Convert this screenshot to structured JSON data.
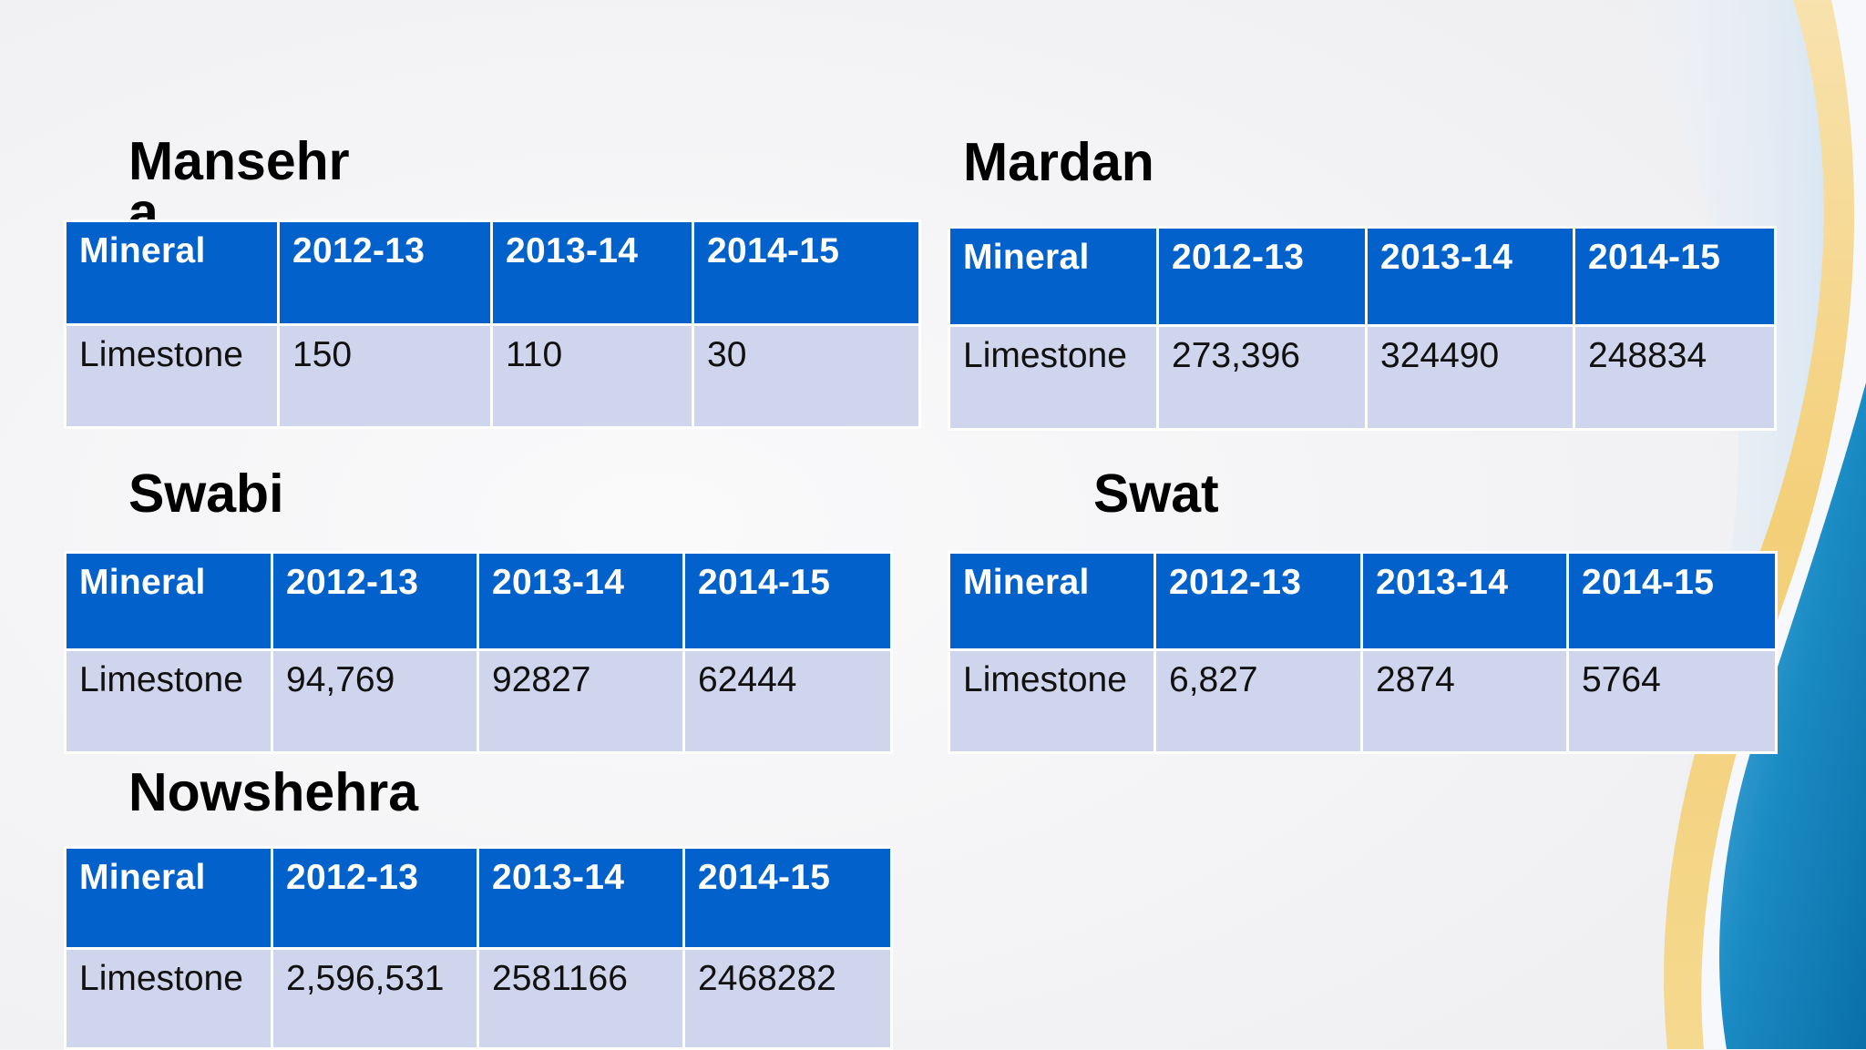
{
  "columns": [
    "Mineral",
    "2012-13",
    "2013-14",
    "2014-15"
  ],
  "tables": {
    "mansehra": {
      "title": "Mansehr\na",
      "row": [
        "Limestone",
        "150",
        "110",
        "30"
      ]
    },
    "mardan": {
      "title": "Mardan",
      "row": [
        "Limestone",
        "273,396",
        "324490",
        "248834"
      ]
    },
    "swabi": {
      "title": "Swabi",
      "row": [
        "Limestone",
        "94,769",
        "92827",
        "62444"
      ]
    },
    "swat": {
      "title": "Swat",
      "row": [
        "Limestone",
        "6,827",
        "2874",
        "5764"
      ]
    },
    "nowshehra": {
      "title": "Nowshehra",
      "row": [
        "Limestone",
        "2,596,531",
        "2581166",
        "2468282"
      ]
    }
  },
  "colors": {
    "header_blue": "#0361cc",
    "row_lavender": "#cfd5ec",
    "accent_yellow": "#f2c75c",
    "accent_teal": "#1a86bf"
  }
}
